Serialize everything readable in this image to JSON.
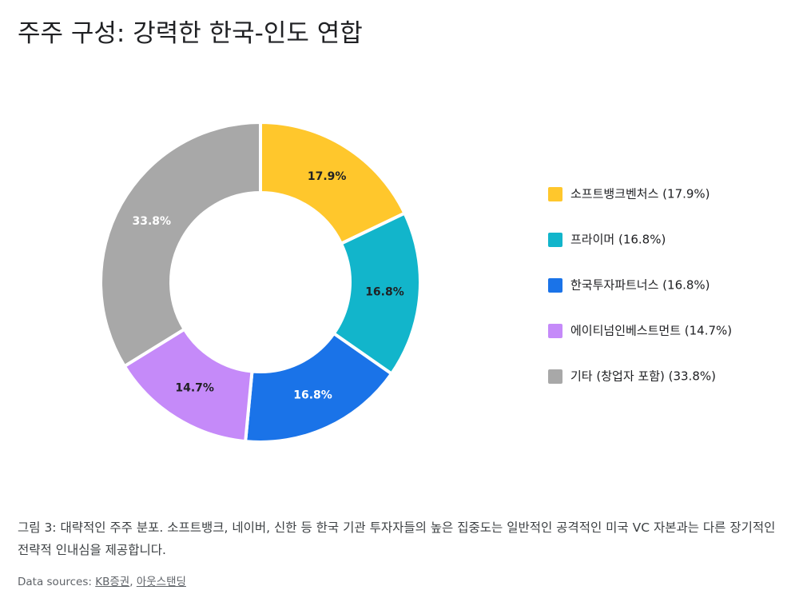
{
  "chart_data": {
    "type": "donut",
    "title": "주주 구성: 강력한 한국-인도 연합",
    "categories": [
      "소프트뱅크벤처스 (17.9%)",
      "프라이머 (16.8%)",
      "한국투자파트너스 (16.8%)",
      "에이티넘인베스트먼트 (14.7%)",
      "기타 (창업자 포함) (33.8%)"
    ],
    "values": [
      17.9,
      16.8,
      16.8,
      14.7,
      33.8
    ],
    "value_labels": [
      "17.9%",
      "16.8%",
      "16.8%",
      "14.7%",
      "33.8%"
    ],
    "colors": [
      "#FFC72C",
      "#12B5CB",
      "#1A73E8",
      "#C58AF9",
      "#A8A8A8"
    ],
    "label_colors": [
      "#202124",
      "#202124",
      "#ffffff",
      "#202124",
      "#ffffff"
    ],
    "legend": "right"
  },
  "caption": "그림 3: 대략적인 주주 분포. 소프트뱅크, 네이버, 신한 등 한국 기관 투자자들의 높은 집중도는 일반적인 공격적인 미국 VC 자본과는 다른 장기적인 전략적 인내심을 제공합니다.",
  "source_label": "Data sources:",
  "sources": [
    "KB증권",
    "아웃스탠딩"
  ],
  "source_separator": ","
}
